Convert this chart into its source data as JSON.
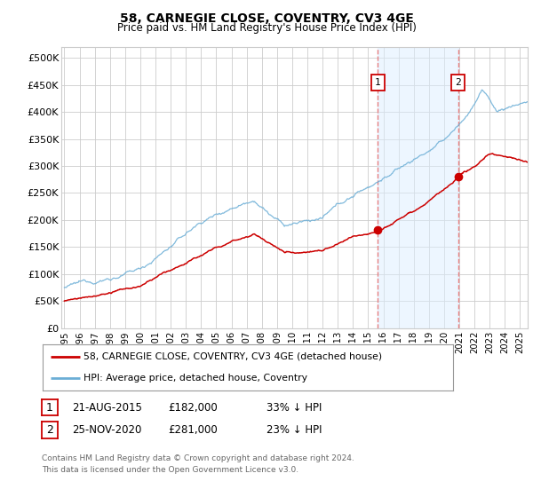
{
  "title": "58, CARNEGIE CLOSE, COVENTRY, CV3 4GE",
  "subtitle": "Price paid vs. HM Land Registry's House Price Index (HPI)",
  "ylabel_ticks": [
    "£0",
    "£50K",
    "£100K",
    "£150K",
    "£200K",
    "£250K",
    "£300K",
    "£350K",
    "£400K",
    "£450K",
    "£500K"
  ],
  "ytick_values": [
    0,
    50000,
    100000,
    150000,
    200000,
    250000,
    300000,
    350000,
    400000,
    450000,
    500000
  ],
  "ylim": [
    0,
    520000
  ],
  "xlim_start": 1994.8,
  "xlim_end": 2025.5,
  "xtick_years": [
    1995,
    1996,
    1997,
    1998,
    1999,
    2000,
    2001,
    2002,
    2003,
    2004,
    2005,
    2006,
    2007,
    2008,
    2009,
    2010,
    2011,
    2012,
    2013,
    2014,
    2015,
    2016,
    2017,
    2018,
    2019,
    2020,
    2021,
    2022,
    2023,
    2024,
    2025
  ],
  "hpi_color": "#6baed6",
  "price_color": "#cc0000",
  "marker_color": "#cc0000",
  "vline_color": "#e88080",
  "shade_color": "#ddeeff",
  "grid_color": "#cccccc",
  "background_color": "#ffffff",
  "legend_label_price": "58, CARNEGIE CLOSE, COVENTRY, CV3 4GE (detached house)",
  "legend_label_hpi": "HPI: Average price, detached house, Coventry",
  "sale1_date": 2015.64,
  "sale1_price": 182000,
  "sale1_label": "1",
  "sale2_date": 2020.92,
  "sale2_price": 281000,
  "sale2_label": "2",
  "annotation1": [
    "1",
    "21-AUG-2015",
    "£182,000",
    "33% ↓ HPI"
  ],
  "annotation2": [
    "2",
    "25-NOV-2020",
    "£281,000",
    "23% ↓ HPI"
  ],
  "footer": "Contains HM Land Registry data © Crown copyright and database right 2024.\nThis data is licensed under the Open Government Licence v3.0."
}
